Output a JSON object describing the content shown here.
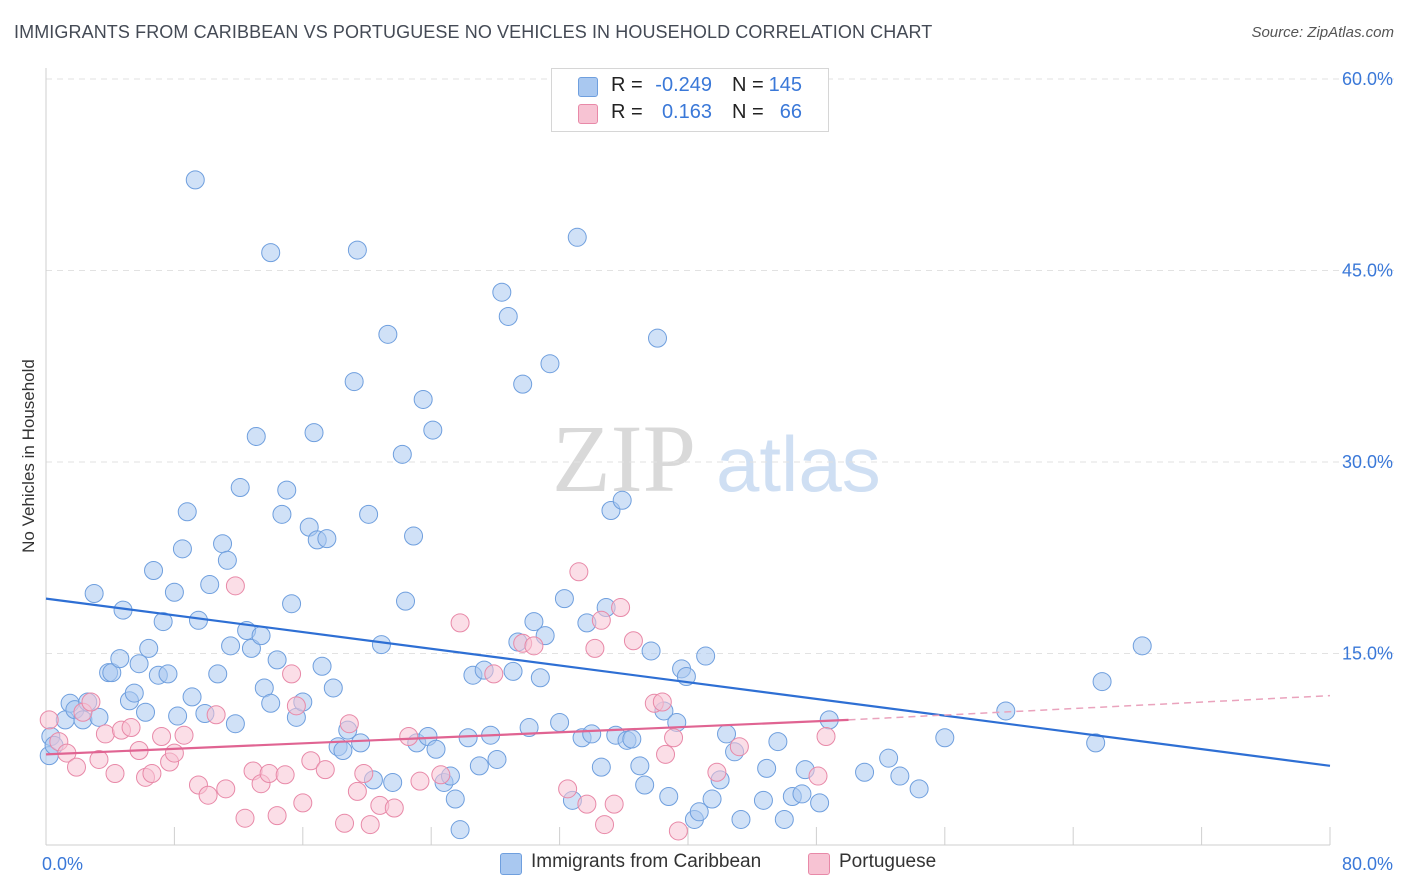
{
  "title": "IMMIGRANTS FROM CARIBBEAN VS PORTUGUESE NO VEHICLES IN HOUSEHOLD CORRELATION CHART",
  "source": "Source: ZipAtlas.com",
  "watermark": {
    "zip": "ZIP",
    "atlas": "atlas"
  },
  "legend": {
    "rows": [
      {
        "r_label": "R =",
        "r_value": "-0.249",
        "n_label": "N =",
        "n_value": "145",
        "color": "#a9c8f0",
        "stroke": "#6f9fde"
      },
      {
        "r_label": "R =",
        "r_value": "0.163",
        "n_label": "N =",
        "n_value": "66",
        "color": "#f7c3d3",
        "stroke": "#e889a8"
      }
    ]
  },
  "bottom_legend": {
    "items": [
      {
        "label": "Immigrants from Caribbean",
        "color": "#a9c8f0",
        "stroke": "#6f9fde"
      },
      {
        "label": "Portuguese",
        "color": "#f7c3d3",
        "stroke": "#e889a8"
      }
    ]
  },
  "chart_data": {
    "type": "scatter",
    "title": "IMMIGRANTS FROM CARIBBEAN VS PORTUGUESE NO VEHICLES IN HOUSEHOLD CORRELATION CHART",
    "xlabel": "",
    "ylabel": "No Vehicles in Household",
    "xlim": [
      0,
      80
    ],
    "ylim": [
      0,
      60
    ],
    "x_tick_labels": [
      "0.0%",
      "80.0%"
    ],
    "y_ticks": [
      15,
      30,
      45,
      60
    ],
    "y_tick_labels": [
      "15.0%",
      "30.0%",
      "45.0%",
      "60.0%"
    ],
    "grid": "horizontal dashed",
    "legend_position": "top-center",
    "series": [
      {
        "name": "Immigrants from Caribbean",
        "color": "#a9c8f0",
        "stroke": "#6f9fde",
        "trend": {
          "x": [
            0,
            80
          ],
          "y": [
            19.3,
            6.2
          ],
          "color": "#2e6fd4"
        },
        "points": [
          [
            0.2,
            7.0
          ],
          [
            0.3,
            8.5
          ],
          [
            0.5,
            7.8
          ],
          [
            1.2,
            9.8
          ],
          [
            1.5,
            11.1
          ],
          [
            1.8,
            10.6
          ],
          [
            2.3,
            9.8
          ],
          [
            2.6,
            11.2
          ],
          [
            3.0,
            19.7
          ],
          [
            3.3,
            10.0
          ],
          [
            3.9,
            13.5
          ],
          [
            4.1,
            13.5
          ],
          [
            4.6,
            14.6
          ],
          [
            4.8,
            18.4
          ],
          [
            5.2,
            11.3
          ],
          [
            5.5,
            11.9
          ],
          [
            5.8,
            14.2
          ],
          [
            6.2,
            10.4
          ],
          [
            6.4,
            15.4
          ],
          [
            6.7,
            21.5
          ],
          [
            7.0,
            13.3
          ],
          [
            7.3,
            17.5
          ],
          [
            7.6,
            13.4
          ],
          [
            8.0,
            19.8
          ],
          [
            8.2,
            10.1
          ],
          [
            8.5,
            23.2
          ],
          [
            8.8,
            26.1
          ],
          [
            9.1,
            11.6
          ],
          [
            9.5,
            17.6
          ],
          [
            9.9,
            10.3
          ],
          [
            10.2,
            20.4
          ],
          [
            10.7,
            13.4
          ],
          [
            11.0,
            23.6
          ],
          [
            11.3,
            22.3
          ],
          [
            11.5,
            15.6
          ],
          [
            11.8,
            9.5
          ],
          [
            12.1,
            28.0
          ],
          [
            12.5,
            16.8
          ],
          [
            12.8,
            15.4
          ],
          [
            13.1,
            32.0
          ],
          [
            13.4,
            16.4
          ],
          [
            13.6,
            12.3
          ],
          [
            14.0,
            11.1
          ],
          [
            14.4,
            14.5
          ],
          [
            14.7,
            25.9
          ],
          [
            15.0,
            27.8
          ],
          [
            15.3,
            18.9
          ],
          [
            15.6,
            10.0
          ],
          [
            16.0,
            11.2
          ],
          [
            16.4,
            24.9
          ],
          [
            16.7,
            32.3
          ],
          [
            16.9,
            23.9
          ],
          [
            17.2,
            14.0
          ],
          [
            17.5,
            24.0
          ],
          [
            17.9,
            12.3
          ],
          [
            18.2,
            7.7
          ],
          [
            18.5,
            7.4
          ],
          [
            18.8,
            9.0
          ],
          [
            19.2,
            36.3
          ],
          [
            19.6,
            8.0
          ],
          [
            20.1,
            25.9
          ],
          [
            20.4,
            5.1
          ],
          [
            20.9,
            15.7
          ],
          [
            21.3,
            40.0
          ],
          [
            21.6,
            4.9
          ],
          [
            22.2,
            30.6
          ],
          [
            22.4,
            19.1
          ],
          [
            22.9,
            24.2
          ],
          [
            23.1,
            8.0
          ],
          [
            23.5,
            34.9
          ],
          [
            23.8,
            8.5
          ],
          [
            24.1,
            32.5
          ],
          [
            24.3,
            7.5
          ],
          [
            24.8,
            4.9
          ],
          [
            25.2,
            5.4
          ],
          [
            25.5,
            3.6
          ],
          [
            25.8,
            1.2
          ],
          [
            26.3,
            8.4
          ],
          [
            26.6,
            13.3
          ],
          [
            27.0,
            6.2
          ],
          [
            27.3,
            13.7
          ],
          [
            27.7,
            8.6
          ],
          [
            28.1,
            6.7
          ],
          [
            28.4,
            43.3
          ],
          [
            28.8,
            41.4
          ],
          [
            29.1,
            13.6
          ],
          [
            29.4,
            15.9
          ],
          [
            29.7,
            36.1
          ],
          [
            30.1,
            9.2
          ],
          [
            30.4,
            17.5
          ],
          [
            30.8,
            13.1
          ],
          [
            31.1,
            16.4
          ],
          [
            31.4,
            37.7
          ],
          [
            32.0,
            9.6
          ],
          [
            32.3,
            19.3
          ],
          [
            32.8,
            3.5
          ],
          [
            33.1,
            47.6
          ],
          [
            33.4,
            8.4
          ],
          [
            33.7,
            17.4
          ],
          [
            34.0,
            8.7
          ],
          [
            34.6,
            6.1
          ],
          [
            34.9,
            18.6
          ],
          [
            35.2,
            26.2
          ],
          [
            35.5,
            8.6
          ],
          [
            35.9,
            27.0
          ],
          [
            36.2,
            8.2
          ],
          [
            36.5,
            8.3
          ],
          [
            37.0,
            6.2
          ],
          [
            37.3,
            4.7
          ],
          [
            37.7,
            15.2
          ],
          [
            38.1,
            39.7
          ],
          [
            38.5,
            10.5
          ],
          [
            38.8,
            3.8
          ],
          [
            39.3,
            9.6
          ],
          [
            39.6,
            13.8
          ],
          [
            39.9,
            13.2
          ],
          [
            40.4,
            2.0
          ],
          [
            40.7,
            2.6
          ],
          [
            41.1,
            14.8
          ],
          [
            41.5,
            3.6
          ],
          [
            42.0,
            5.1
          ],
          [
            42.4,
            8.7
          ],
          [
            42.9,
            7.3
          ],
          [
            43.3,
            2.0
          ],
          [
            44.7,
            3.5
          ],
          [
            44.9,
            6.0
          ],
          [
            45.6,
            8.1
          ],
          [
            46.0,
            2.0
          ],
          [
            46.5,
            3.8
          ],
          [
            47.1,
            4.0
          ],
          [
            47.3,
            5.9
          ],
          [
            48.2,
            3.3
          ],
          [
            48.8,
            9.8
          ],
          [
            51.0,
            5.7
          ],
          [
            52.5,
            6.8
          ],
          [
            53.2,
            5.4
          ],
          [
            54.4,
            4.4
          ],
          [
            56.0,
            8.4
          ],
          [
            59.8,
            10.5
          ],
          [
            65.4,
            8.0
          ],
          [
            65.8,
            12.8
          ],
          [
            68.3,
            15.6
          ],
          [
            9.3,
            52.1
          ],
          [
            14.0,
            46.4
          ],
          [
            19.4,
            46.6
          ]
        ]
      },
      {
        "name": "Portuguese",
        "color": "#f7c3d3",
        "stroke": "#e889a8",
        "trend": {
          "x": [
            0,
            50
          ],
          "y": [
            7.1,
            9.8
          ],
          "color": "#e06492"
        },
        "trend_extension": {
          "x": [
            50,
            80
          ],
          "y": [
            9.8,
            11.7
          ]
        },
        "points": [
          [
            0.2,
            9.8
          ],
          [
            0.8,
            8.1
          ],
          [
            1.3,
            7.2
          ],
          [
            1.9,
            6.1
          ],
          [
            2.3,
            10.4
          ],
          [
            2.8,
            11.2
          ],
          [
            3.3,
            6.7
          ],
          [
            3.7,
            8.7
          ],
          [
            4.3,
            5.6
          ],
          [
            4.7,
            9.0
          ],
          [
            5.3,
            9.2
          ],
          [
            5.8,
            7.4
          ],
          [
            6.2,
            5.3
          ],
          [
            6.6,
            5.6
          ],
          [
            7.2,
            8.5
          ],
          [
            7.7,
            6.5
          ],
          [
            8.0,
            7.2
          ],
          [
            8.6,
            8.6
          ],
          [
            9.5,
            4.7
          ],
          [
            10.1,
            3.9
          ],
          [
            10.6,
            10.2
          ],
          [
            11.2,
            4.4
          ],
          [
            11.8,
            20.3
          ],
          [
            12.4,
            2.1
          ],
          [
            12.9,
            5.8
          ],
          [
            13.4,
            4.8
          ],
          [
            13.9,
            5.6
          ],
          [
            14.4,
            2.3
          ],
          [
            14.9,
            5.5
          ],
          [
            15.3,
            13.4
          ],
          [
            15.6,
            10.9
          ],
          [
            16.0,
            3.3
          ],
          [
            16.5,
            6.6
          ],
          [
            17.4,
            5.9
          ],
          [
            18.6,
            1.7
          ],
          [
            18.9,
            9.5
          ],
          [
            19.4,
            4.2
          ],
          [
            19.8,
            5.6
          ],
          [
            20.2,
            1.6
          ],
          [
            20.8,
            3.1
          ],
          [
            21.7,
            2.9
          ],
          [
            22.6,
            8.5
          ],
          [
            23.3,
            5.0
          ],
          [
            24.6,
            5.5
          ],
          [
            25.8,
            17.4
          ],
          [
            27.9,
            13.4
          ],
          [
            29.7,
            15.8
          ],
          [
            30.4,
            15.6
          ],
          [
            32.5,
            4.4
          ],
          [
            33.2,
            21.4
          ],
          [
            33.7,
            3.2
          ],
          [
            34.2,
            15.4
          ],
          [
            34.6,
            17.6
          ],
          [
            34.8,
            1.6
          ],
          [
            35.4,
            3.2
          ],
          [
            35.8,
            18.6
          ],
          [
            36.6,
            16.0
          ],
          [
            37.9,
            11.1
          ],
          [
            38.4,
            11.2
          ],
          [
            38.6,
            7.1
          ],
          [
            39.1,
            8.4
          ],
          [
            39.4,
            1.1
          ],
          [
            41.8,
            5.7
          ],
          [
            43.2,
            7.7
          ],
          [
            48.1,
            5.4
          ],
          [
            48.6,
            8.5
          ]
        ]
      }
    ]
  }
}
